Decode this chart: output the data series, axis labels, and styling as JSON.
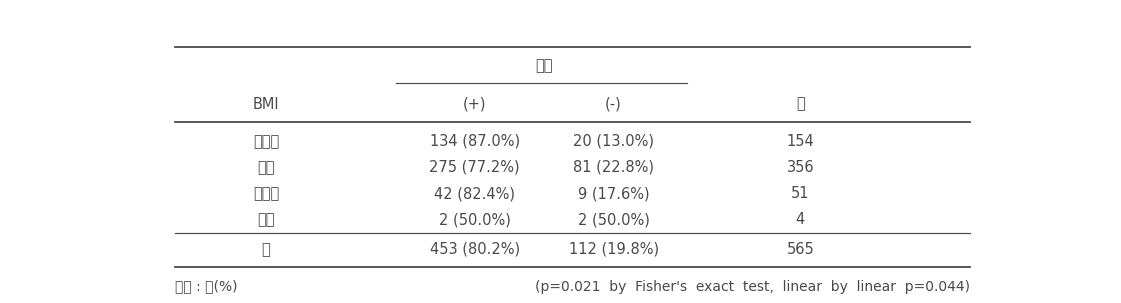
{
  "col_header_top": "항체",
  "col_header_sub": [
    "(+)",
    "(-)"
  ],
  "col_bmi": "BMI",
  "col_total": "계",
  "rows": [
    {
      "bmi": "저체중",
      "pos": "134 (87.0%)",
      "neg": "20 (13.0%)",
      "total": "154"
    },
    {
      "bmi": "정상",
      "pos": "275 (77.2%)",
      "neg": "81 (22.8%)",
      "total": "356"
    },
    {
      "bmi": "과체중",
      "pos": "42 (82.4%)",
      "neg": "9 (17.6%)",
      "total": "51"
    },
    {
      "bmi": "비만",
      "pos": "2 (50.0%)",
      "neg": "2 (50.0%)",
      "total": "4"
    }
  ],
  "total_row": {
    "bmi": "계",
    "pos": "453 (80.2%)",
    "neg": "112 (19.8%)",
    "total": "565"
  },
  "footnote_left": "단위 : 명(%)",
  "footnote_right": "(p=0.021  by  Fisher's  exact  test,  linear  by  linear  p=0.044)",
  "font_color": "#4a4a4a",
  "bg_color": "#ffffff",
  "font_size": 10.5,
  "line_color": "#4a4a4a"
}
